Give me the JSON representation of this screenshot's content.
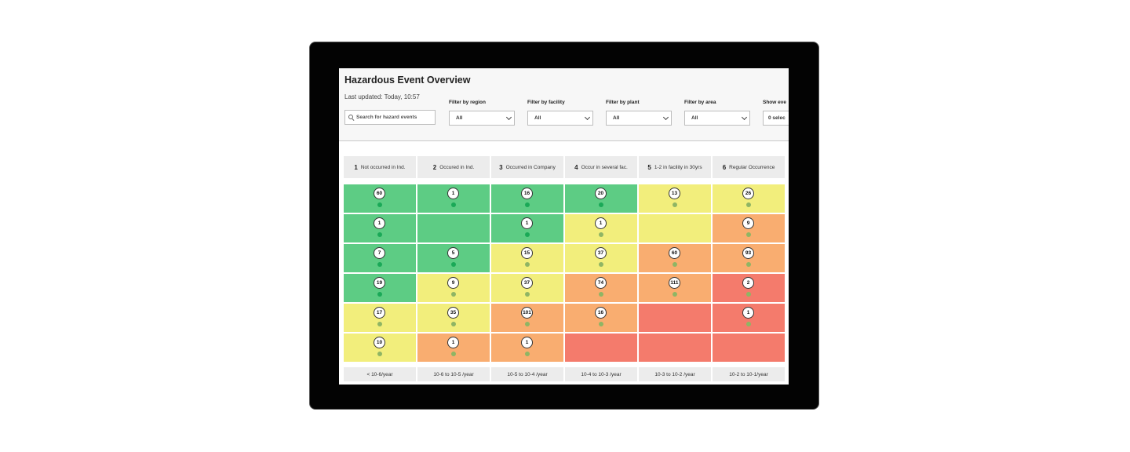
{
  "colors": {
    "green": "#5dcc84",
    "yellow": "#f2ee7c",
    "orange": "#f9ad70",
    "red": "#f47b6c",
    "dot_green": "#1aa957",
    "dot_muted": "#8fb564"
  },
  "header": {
    "title": "Hazardous Event Overview",
    "last_updated": "Last updated: Today, 10:57"
  },
  "search": {
    "placeholder": "Search for hazard events"
  },
  "filters": [
    {
      "label": "Filter by region",
      "value": "All"
    },
    {
      "label": "Filter by facility",
      "value": "All"
    },
    {
      "label": "Filter by plant",
      "value": "All"
    },
    {
      "label": "Filter by area",
      "value": "All"
    },
    {
      "label": "Show eve",
      "value": "0 selec"
    }
  ],
  "columns": [
    {
      "num": "1",
      "label": "Not occurred in Ind."
    },
    {
      "num": "2",
      "label": "Occured in Ind."
    },
    {
      "num": "3",
      "label": "Occurred in Company"
    },
    {
      "num": "4",
      "label": "Occur in several fac."
    },
    {
      "num": "5",
      "label": "1-2 in facility in 30yrs"
    },
    {
      "num": "6",
      "label": "Regular Occurrence"
    }
  ],
  "grid": [
    [
      {
        "color": "green",
        "count": "60"
      },
      {
        "color": "green",
        "count": "1"
      },
      {
        "color": "green",
        "count": "16"
      },
      {
        "color": "green",
        "count": "20"
      },
      {
        "color": "yellow",
        "count": "13"
      },
      {
        "color": "yellow",
        "count": "26"
      }
    ],
    [
      {
        "color": "green",
        "count": "1"
      },
      {
        "color": "green",
        "count": ""
      },
      {
        "color": "green",
        "count": "1"
      },
      {
        "color": "yellow",
        "count": "1"
      },
      {
        "color": "yellow",
        "count": ""
      },
      {
        "color": "orange",
        "count": "9"
      }
    ],
    [
      {
        "color": "green",
        "count": "7"
      },
      {
        "color": "green",
        "count": "5"
      },
      {
        "color": "yellow",
        "count": "15"
      },
      {
        "color": "yellow",
        "count": "37"
      },
      {
        "color": "orange",
        "count": "60"
      },
      {
        "color": "orange",
        "count": "93"
      }
    ],
    [
      {
        "color": "green",
        "count": "19"
      },
      {
        "color": "yellow",
        "count": "9"
      },
      {
        "color": "yellow",
        "count": "37"
      },
      {
        "color": "orange",
        "count": "74"
      },
      {
        "color": "orange",
        "count": "111"
      },
      {
        "color": "red",
        "count": "2"
      }
    ],
    [
      {
        "color": "yellow",
        "count": "17"
      },
      {
        "color": "yellow",
        "count": "35"
      },
      {
        "color": "orange",
        "count": "101"
      },
      {
        "color": "orange",
        "count": "16"
      },
      {
        "color": "red",
        "count": ""
      },
      {
        "color": "red",
        "count": "1"
      }
    ],
    [
      {
        "color": "yellow",
        "count": "10"
      },
      {
        "color": "orange",
        "count": "1"
      },
      {
        "color": "orange",
        "count": "1"
      },
      {
        "color": "red",
        "count": ""
      },
      {
        "color": "red",
        "count": ""
      },
      {
        "color": "red",
        "count": ""
      }
    ]
  ],
  "footer": [
    "< 10-6/year",
    "10-6 to 10-5 /year",
    "10-5 to 10-4 /year",
    "10-4 to 10-3 /year",
    "10-3 to 10-2 /year",
    "10-2 to 10-1/year"
  ]
}
